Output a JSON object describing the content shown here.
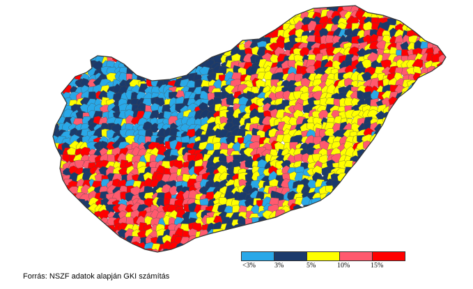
{
  "map": {
    "categories": [
      {
        "key": "lt3",
        "color": "#29a8e8"
      },
      {
        "key": "3",
        "color": "#1b3a6b"
      },
      {
        "key": "5",
        "color": "#ffff00"
      },
      {
        "key": "10",
        "color": "#ff5a6e"
      },
      {
        "key": "15",
        "color": "#ff0000"
      }
    ],
    "outline_color": "#4a4a4a",
    "base_color": "#5b8fd0"
  },
  "legend": {
    "labels": [
      "<3%",
      "3%",
      "5%",
      "10%",
      "15%"
    ]
  },
  "source": {
    "text": "Forrás: NSZF adatok alapján GKI számítás"
  }
}
